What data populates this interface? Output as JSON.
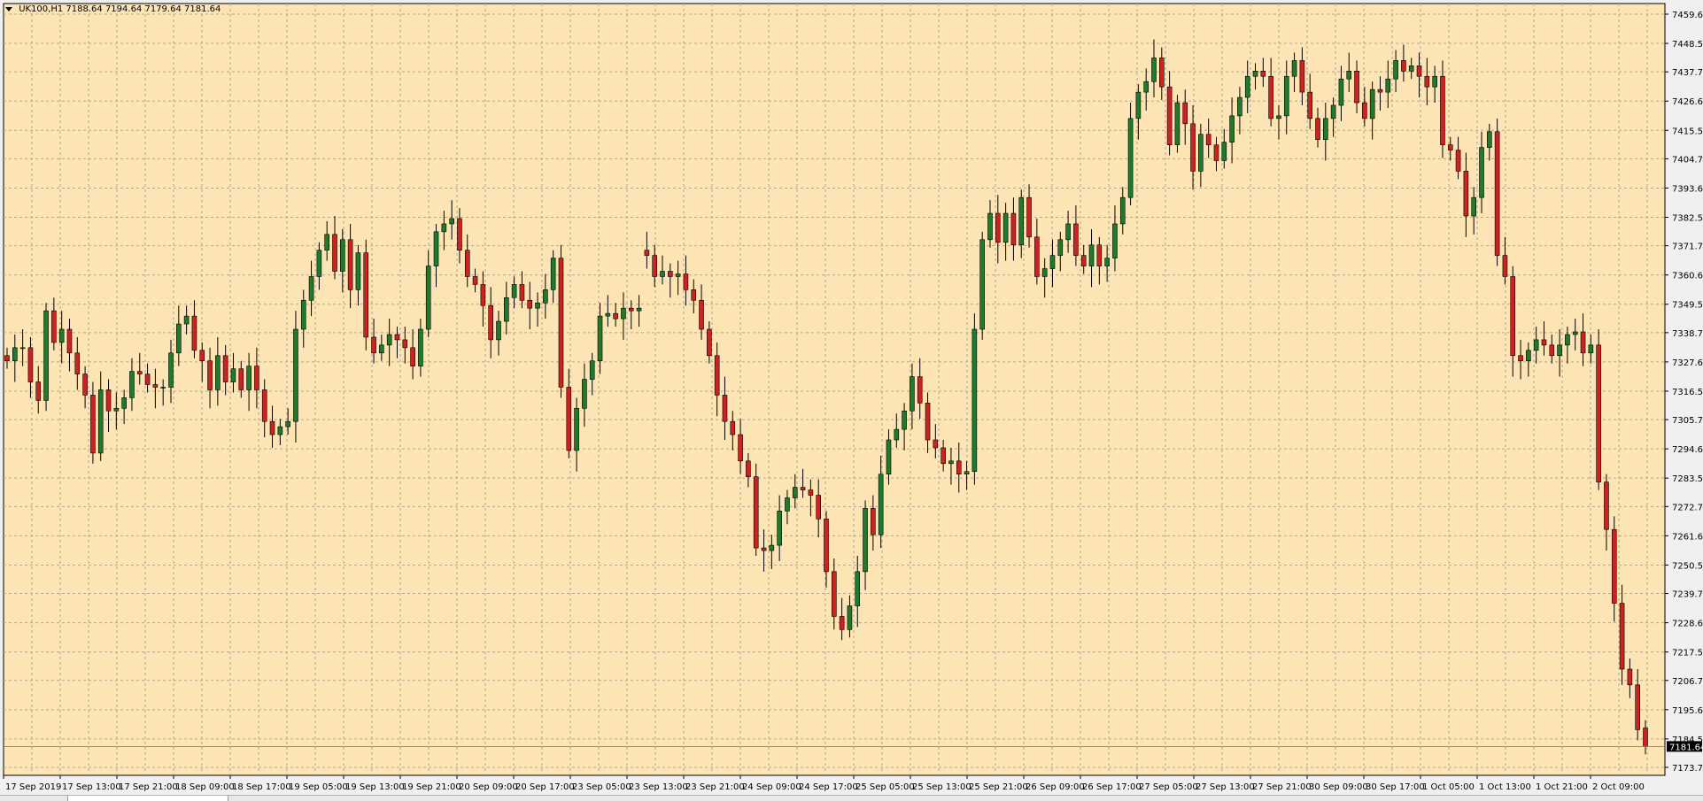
{
  "header": {
    "symbol": "UK100,H1",
    "ohlc": "7188.64 7194.64 7179.64 7181.64"
  },
  "colors": {
    "background": "#fde4b4",
    "grid": "#b3a88c",
    "bull_body": "#1f7a2b",
    "bear_body": "#cc2222",
    "wick": "#000000",
    "price_tag_bg": "#000000",
    "price_tag_text": "#ffffff"
  },
  "chart_data": {
    "type": "candlestick",
    "price_axis": {
      "labels": [
        "7459.60",
        "7448.50",
        "7437.70",
        "7426.60",
        "7415.50",
        "7404.70",
        "7393.60",
        "7382.50",
        "7371.70",
        "7360.60",
        "7349.50",
        "7338.70",
        "7327.60",
        "7316.50",
        "7305.70",
        "7294.60",
        "7283.50",
        "7272.70",
        "7261.60",
        "7250.50",
        "7239.70",
        "7228.60",
        "7217.50",
        "7206.70",
        "7195.60",
        "7184.50",
        "7173.70"
      ],
      "current_price": "7181.64"
    },
    "time_axis": {
      "labels": [
        "17 Sep 2019",
        "17 Sep 13:00",
        "17 Sep 21:00",
        "18 Sep 09:00",
        "18 Sep 17:00",
        "19 Sep 05:00",
        "19 Sep 13:00",
        "19 Sep 21:00",
        "20 Sep 09:00",
        "20 Sep 17:00",
        "23 Sep 05:00",
        "23 Sep 13:00",
        "23 Sep 21:00",
        "24 Sep 09:00",
        "24 Sep 17:00",
        "25 Sep 05:00",
        "25 Sep 13:00",
        "25 Sep 21:00",
        "26 Sep 09:00",
        "26 Sep 17:00",
        "27 Sep 05:00",
        "27 Sep 13:00",
        "27 Sep 21:00",
        "30 Sep 09:00",
        "30 Sep 17:00",
        "1 Oct 05:00",
        "1 Oct 13:00",
        "1 Oct 21:00",
        "2 Oct 09:00"
      ]
    },
    "grid": true,
    "closes": [
      7328,
      7333,
      7333,
      7320,
      7313,
      7347,
      7335,
      7340,
      7331,
      7323,
      7315,
      7293,
      7317,
      7309,
      7310,
      7314,
      7324,
      7323,
      7319,
      7318,
      7318,
      7331,
      7342,
      7345,
      7332,
      7328,
      7317,
      7330,
      7320,
      7325,
      7317,
      7326,
      7317,
      7305,
      7300,
      7303,
      7305,
      7340,
      7351,
      7360,
      7370,
      7376,
      7362,
      7374,
      7355,
      7369,
      7337,
      7331,
      7334,
      7338,
      7336,
      7333,
      7326,
      7340,
      7364,
      7377,
      7380,
      7382,
      7370,
      7360,
      7357,
      7349,
      7336,
      7343,
      7352,
      7357,
      7351,
      7348,
      7350,
      7355,
      7367,
      7318,
      7294,
      7310,
      7321,
      7328,
      7345,
      7346,
      7344,
      7348,
      7347,
      7348,
      7368,
      7360,
      7362,
      7360,
      7361,
      7355,
      7351,
      7340,
      7330,
      7315,
      7305,
      7300,
      7290,
      7284,
      7257,
      7256,
      7258,
      7271,
      7276,
      7280,
      7279,
      7277,
      7268,
      7248,
      7231,
      7226,
      7235,
      7248,
      7272,
      7262,
      7285,
      7298,
      7302,
      7309,
      7322,
      7312,
      7298,
      7295,
      7289,
      7290,
      7285,
      7286,
      7340,
      7374,
      7384,
      7373,
      7384,
      7372,
      7390,
      7375,
      7360,
      7363,
      7368,
      7374,
      7380,
      7368,
      7364,
      7372,
      7364,
      7367,
      7380,
      7390,
      7420,
      7430,
      7434,
      7443,
      7432,
      7410,
      7426,
      7418,
      7400,
      7414,
      7410,
      7404,
      7411,
      7421,
      7428,
      7436,
      7438,
      7436,
      7420,
      7421,
      7436,
      7442,
      7430,
      7420,
      7412,
      7420,
      7425,
      7435,
      7438,
      7426,
      7420,
      7431,
      7430,
      7435,
      7442,
      7438,
      7440,
      7436,
      7432,
      7436,
      7410,
      7408,
      7400,
      7383,
      7390,
      7409,
      7415,
      7368,
      7360,
      7330,
      7328,
      7332,
      7336,
      7334,
      7330,
      7334,
      7338,
      7339,
      7331,
      7334,
      7282,
      7264,
      7236,
      7211,
      7205,
      7188,
      7181.64
    ],
    "opens": [
      7330,
      7328,
      7333,
      7333,
      7320,
      7313,
      7347,
      7335,
      7340,
      7331,
      7323,
      7315,
      7293,
      7317,
      7309,
      7310,
      7314,
      7324,
      7323,
      7319,
      7318,
      7318,
      7331,
      7342,
      7345,
      7332,
      7328,
      7317,
      7330,
      7320,
      7325,
      7317,
      7326,
      7317,
      7305,
      7300,
      7303,
      7305,
      7340,
      7351,
      7360,
      7370,
      7376,
      7362,
      7374,
      7355,
      7369,
      7337,
      7331,
      7334,
      7338,
      7336,
      7333,
      7326,
      7340,
      7364,
      7377,
      7380,
      7382,
      7370,
      7360,
      7357,
      7349,
      7336,
      7343,
      7352,
      7357,
      7351,
      7348,
      7350,
      7355,
      7367,
      7318,
      7294,
      7310,
      7321,
      7328,
      7345,
      7346,
      7344,
      7348,
      7347,
      7370,
      7368,
      7360,
      7362,
      7360,
      7361,
      7355,
      7351,
      7340,
      7330,
      7315,
      7305,
      7300,
      7290,
      7284,
      7257,
      7256,
      7258,
      7271,
      7276,
      7280,
      7279,
      7277,
      7268,
      7248,
      7231,
      7226,
      7235,
      7248,
      7272,
      7262,
      7285,
      7298,
      7302,
      7309,
      7322,
      7312,
      7298,
      7295,
      7289,
      7290,
      7285,
      7286,
      7340,
      7374,
      7384,
      7373,
      7384,
      7372,
      7390,
      7375,
      7360,
      7363,
      7368,
      7374,
      7380,
      7368,
      7364,
      7372,
      7364,
      7367,
      7380,
      7390,
      7420,
      7430,
      7434,
      7443,
      7432,
      7410,
      7426,
      7418,
      7400,
      7414,
      7410,
      7404,
      7411,
      7421,
      7428,
      7436,
      7438,
      7436,
      7420,
      7421,
      7436,
      7442,
      7430,
      7420,
      7412,
      7420,
      7425,
      7435,
      7438,
      7426,
      7420,
      7431,
      7430,
      7435,
      7442,
      7438,
      7440,
      7436,
      7432,
      7436,
      7410,
      7408,
      7400,
      7383,
      7390,
      7409,
      7415,
      7368,
      7360,
      7330,
      7328,
      7332,
      7336,
      7334,
      7330,
      7334,
      7338,
      7339,
      7331,
      7334,
      7282,
      7264,
      7236,
      7211,
      7205,
      7188.64
    ]
  },
  "tabs": {
    "active": ""
  }
}
